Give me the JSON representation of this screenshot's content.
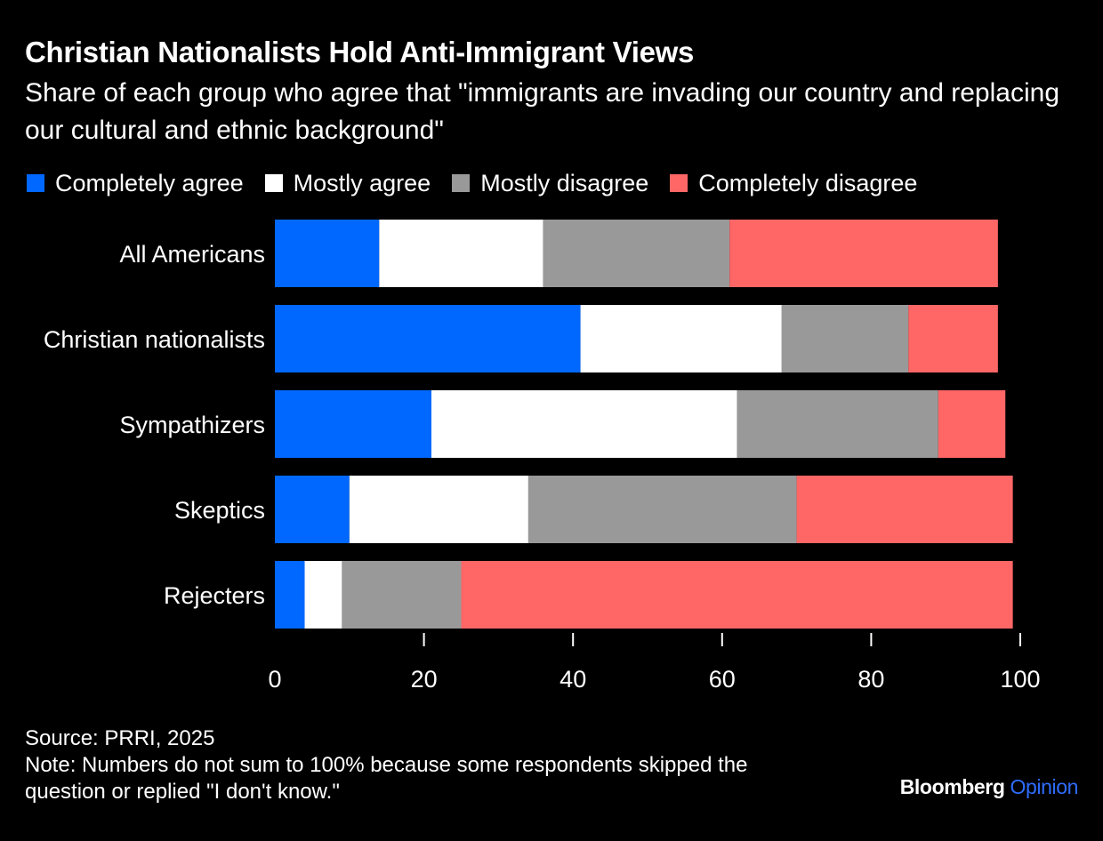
{
  "title": "Christian Nationalists Hold Anti-Immigrant Views",
  "subtitle": "Share of each group who agree that \"immigrants are invading our country and replacing our cultural and ethnic background\"",
  "legend": [
    {
      "label": "Completely agree",
      "color": "#0068ff"
    },
    {
      "label": "Mostly agree",
      "color": "#ffffff"
    },
    {
      "label": "Mostly disagree",
      "color": "#999999"
    },
    {
      "label": "Completely disagree",
      "color": "#ff6666"
    }
  ],
  "chart_data": {
    "type": "bar",
    "orientation": "horizontal",
    "stacked": true,
    "categories": [
      "All Americans",
      "Christian nationalists",
      "Sympathizers",
      "Skeptics",
      "Rejecters"
    ],
    "series": [
      {
        "name": "Completely agree",
        "color": "#0068ff",
        "values": [
          14,
          41,
          21,
          10,
          4
        ]
      },
      {
        "name": "Mostly agree",
        "color": "#ffffff",
        "values": [
          22,
          27,
          41,
          24,
          5
        ]
      },
      {
        "name": "Mostly disagree",
        "color": "#999999",
        "values": [
          25,
          17,
          27,
          36,
          16
        ]
      },
      {
        "name": "Completely disagree",
        "color": "#ff6666",
        "values": [
          36,
          12,
          9,
          29,
          74
        ]
      }
    ],
    "xlim": [
      0,
      100
    ],
    "xticks": [
      0,
      20,
      40,
      60,
      80,
      100
    ],
    "xlabel": "",
    "ylabel": "",
    "legend_position": "top-left"
  },
  "source": "Source: PRRI, 2025",
  "note_line1": "Note: Numbers do not sum to 100% because some respondents skipped the",
  "note_line2": "question or replied \"I don't know.\"",
  "brand": {
    "name": "Bloomberg",
    "section": "Opinion"
  }
}
